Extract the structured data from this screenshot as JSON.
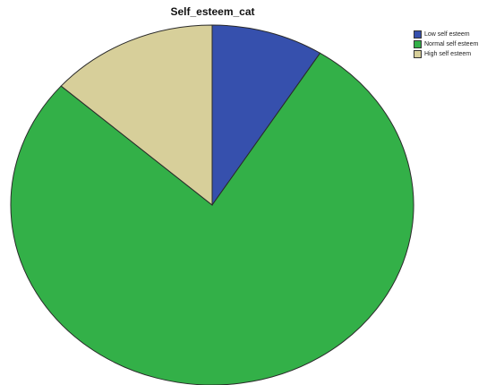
{
  "chart_data": {
    "type": "pie",
    "title": "Self_esteem_cat",
    "legend_position": "top-right",
    "slices": [
      {
        "label": "Low self esteem",
        "value": 9.0,
        "color": "#3650ad"
      },
      {
        "label": "Normal self esteem",
        "value": 77.5,
        "color": "#33b048"
      },
      {
        "label": "High self esteem",
        "value": 13.5,
        "color": "#d7cf9a"
      }
    ]
  }
}
